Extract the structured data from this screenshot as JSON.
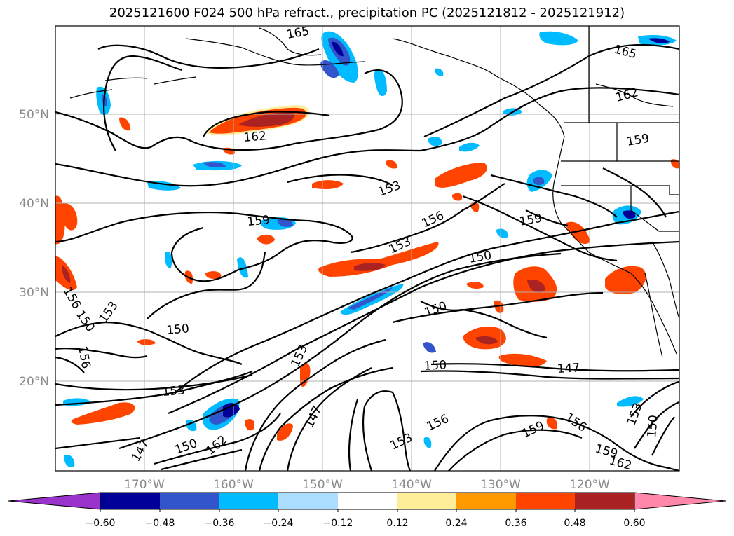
{
  "title": "2025121600 F024 500 hPa refract., precipitation PC (2025121812 - 2025121912)",
  "lat_labels": [
    "50°N",
    "40°N",
    "30°N",
    "20°N"
  ],
  "lon_labels": [
    "170°W",
    "160°W",
    "150°W",
    "140°W",
    "130°W",
    "120°W"
  ],
  "contour_labels": [
    {
      "text": "165"
    },
    {
      "text": "165"
    },
    {
      "text": "162"
    },
    {
      "text": "162"
    },
    {
      "text": "159"
    },
    {
      "text": "153"
    },
    {
      "text": "159"
    },
    {
      "text": "156"
    },
    {
      "text": "159"
    },
    {
      "text": "153"
    },
    {
      "text": "150"
    },
    {
      "text": "156"
    },
    {
      "text": "150"
    },
    {
      "text": "153"
    },
    {
      "text": "156"
    },
    {
      "text": "150"
    },
    {
      "text": "150"
    },
    {
      "text": "153"
    },
    {
      "text": "153"
    },
    {
      "text": "150"
    },
    {
      "text": "147"
    },
    {
      "text": "147"
    },
    {
      "text": "147"
    },
    {
      "text": "150"
    },
    {
      "text": "162"
    },
    {
      "text": "153"
    },
    {
      "text": "156"
    },
    {
      "text": "159"
    },
    {
      "text": "156"
    },
    {
      "text": "159"
    },
    {
      "text": "162"
    },
    {
      "text": "153"
    },
    {
      "text": "150"
    }
  ],
  "colorbar": {
    "ticks": [
      "−0.60",
      "−0.48",
      "−0.36",
      "−0.24",
      "−0.12",
      "0.12",
      "0.24",
      "0.36",
      "0.48",
      "0.60"
    ],
    "colors": [
      "#9933cc",
      "#000099",
      "#3355cc",
      "#00bbff",
      "#aaddff",
      "#ffffff",
      "#ffee99",
      "#ff9900",
      "#ff4400",
      "#aa2222",
      "#ff88aa"
    ]
  },
  "colors": {
    "grid": "#b0b0b0",
    "contour": "#000000",
    "coast": "#000000"
  }
}
